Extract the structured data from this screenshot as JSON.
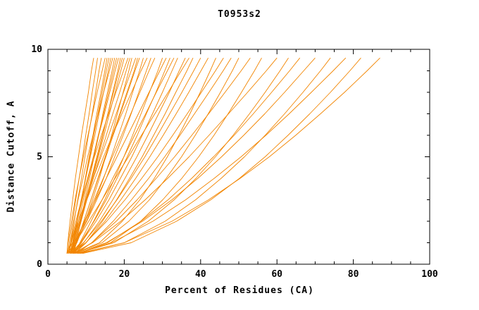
{
  "chart_data": {
    "type": "line",
    "title": "T0953s2",
    "xlabel": "Percent of Residues (CA)",
    "ylabel": "Distance Cutoff, A",
    "xlim": [
      0,
      100
    ],
    "ylim": [
      0,
      10
    ],
    "x_major_ticks": [
      0,
      20,
      40,
      60,
      80,
      100
    ],
    "x_minor_step": 5,
    "y_major_ticks": [
      0,
      5,
      10
    ],
    "y_minor_step": 1,
    "grid": false,
    "legend": "none",
    "line_color": "#f28500",
    "axis_color": "#000000",
    "background": "#ffffff",
    "y_levels": [
      0.5,
      1,
      2,
      3,
      4,
      5,
      6,
      7,
      8,
      9,
      9.6
    ],
    "curves": [
      [
        5,
        5.2,
        5.8,
        6.5,
        7.2,
        8.0,
        8.8,
        9.7,
        10.6,
        11.4,
        12
      ],
      [
        5.2,
        5.6,
        6.5,
        7.3,
        8.2,
        9.1,
        9.9,
        10.8,
        11.6,
        12.5,
        13
      ],
      [
        5.5,
        6.0,
        6.9,
        7.8,
        8.8,
        9.7,
        10.6,
        11.6,
        12.5,
        13.4,
        14
      ],
      [
        5,
        5.3,
        6.2,
        7.1,
        8.2,
        9.3,
        10.5,
        11.7,
        12.9,
        14.2,
        15
      ],
      [
        6.2,
        6.7,
        7.7,
        8.8,
        9.8,
        10.8,
        11.8,
        12.8,
        13.9,
        14.9,
        15.5
      ],
      [
        6,
        6.6,
        7.7,
        8.8,
        9.9,
        11.0,
        12.0,
        13.1,
        14.2,
        15.3,
        16
      ],
      [
        5.8,
        6.4,
        7.6,
        8.7,
        9.9,
        11.1,
        12.3,
        13.4,
        14.6,
        15.8,
        16.5
      ],
      [
        5.5,
        5.9,
        6.8,
        7.9,
        9.2,
        10.4,
        11.8,
        13.2,
        14.6,
        16.1,
        17
      ],
      [
        6.8,
        7.4,
        8.6,
        9.7,
        10.9,
        12.1,
        13.3,
        14.4,
        15.6,
        16.8,
        17.5
      ],
      [
        6,
        6.7,
        8.0,
        9.3,
        10.6,
        11.9,
        13.2,
        14.6,
        15.9,
        17.2,
        18
      ],
      [
        5.4,
        6.1,
        7.6,
        9.0,
        10.4,
        11.9,
        13.3,
        14.8,
        16.2,
        17.6,
        18.5
      ],
      [
        5,
        6.4,
        8.3,
        10.0,
        11.5,
        13.0,
        14.4,
        15.7,
        17.0,
        18.3,
        19
      ],
      [
        6.3,
        7.0,
        8.5,
        9.9,
        11.4,
        12.8,
        14.3,
        15.7,
        17.2,
        18.6,
        19.5
      ],
      [
        6.5,
        7.2,
        8.7,
        10.2,
        11.7,
        13.2,
        14.7,
        16.1,
        17.6,
        19.1,
        20
      ],
      [
        5.5,
        6.0,
        7.3,
        8.8,
        10.4,
        12.2,
        14.0,
        15.9,
        17.8,
        19.8,
        21
      ],
      [
        5.9,
        6.8,
        8.5,
        10.2,
        11.9,
        13.6,
        15.3,
        17.0,
        18.8,
        20.5,
        21.5
      ],
      [
        6,
        7.6,
        9.8,
        11.7,
        13.5,
        15.1,
        16.7,
        18.2,
        19.7,
        21.2,
        22
      ],
      [
        5,
        6.0,
        8.0,
        10.0,
        11.9,
        13.9,
        15.9,
        17.9,
        19.8,
        21.8,
        23
      ],
      [
        6.6,
        7.5,
        9.4,
        11.3,
        13.1,
        15.0,
        16.9,
        18.8,
        20.7,
        22.6,
        23.5
      ],
      [
        6.5,
        7.5,
        9.4,
        11.3,
        13.2,
        15.2,
        17.1,
        19.0,
        20.9,
        22.8,
        24
      ],
      [
        5.5,
        7.4,
        10.1,
        12.4,
        14.6,
        16.6,
        18.5,
        20.4,
        22.2,
        24.0,
        25
      ],
      [
        6,
        6.6,
        8.3,
        10.2,
        12.4,
        14.6,
        16.9,
        19.4,
        21.9,
        24.4,
        26
      ],
      [
        5,
        7.2,
        10.2,
        12.8,
        15.3,
        17.5,
        19.7,
        21.8,
        23.8,
        25.8,
        27
      ],
      [
        6,
        7.2,
        9.6,
        12.1,
        14.5,
        16.9,
        19.3,
        21.7,
        24.1,
        26.5,
        28
      ],
      [
        6.5,
        8.8,
        12.0,
        14.9,
        17.5,
        19.9,
        22.2,
        24.4,
        26.6,
        28.8,
        30
      ],
      [
        5.5,
        6.9,
        9.7,
        12.5,
        15.3,
        18.1,
        20.9,
        23.7,
        26.5,
        29.3,
        31
      ],
      [
        6,
        8.5,
        12.1,
        15.3,
        18.1,
        20.8,
        23.4,
        25.8,
        28.3,
        30.6,
        32
      ],
      [
        7,
        8.4,
        11.3,
        14.2,
        17.0,
        19.9,
        22.7,
        25.6,
        28.4,
        31.3,
        33
      ],
      [
        6,
        8.7,
        12.6,
        16.0,
        19.0,
        22.0,
        24.7,
        27.4,
        30.0,
        32.5,
        34
      ],
      [
        6.5,
        9.4,
        13.5,
        17.0,
        20.2,
        23.3,
        26.2,
        29.0,
        31.8,
        34.4,
        36
      ],
      [
        5.5,
        7.2,
        10.7,
        14.2,
        17.6,
        21.1,
        24.5,
        28.0,
        31.5,
        34.9,
        37
      ],
      [
        7,
        10.0,
        14.3,
        18.0,
        21.4,
        24.7,
        27.7,
        30.7,
        33.5,
        36.4,
        38
      ],
      [
        6,
        9.3,
        14.0,
        18.1,
        21.8,
        25.4,
        28.7,
        31.9,
        35.1,
        38.2,
        40
      ],
      [
        6.5,
        10.0,
        14.9,
        19.1,
        23.0,
        26.7,
        30.2,
        33.6,
        36.9,
        40.1,
        42
      ],
      [
        7,
        13.5,
        19.5,
        24.1,
        27.9,
        31.3,
        34.3,
        37.2,
        39.9,
        42.5,
        44
      ],
      [
        6,
        9.9,
        15.4,
        20.2,
        24.6,
        28.8,
        32.7,
        36.5,
        40.2,
        43.9,
        46
      ],
      [
        7.5,
        11.5,
        17.1,
        21.9,
        26.4,
        30.6,
        34.6,
        38.4,
        42.2,
        45.9,
        48
      ],
      [
        6.5,
        14.2,
        21.2,
        26.6,
        31.0,
        35.0,
        38.6,
        42.0,
        45.2,
        48.3,
        50
      ],
      [
        7,
        11.5,
        17.9,
        23.4,
        28.4,
        33.2,
        37.7,
        42.1,
        46.4,
        50.6,
        53
      ],
      [
        8,
        16.4,
        24.3,
        30.1,
        35.1,
        39.5,
        43.5,
        47.2,
        50.7,
        54.1,
        56
      ],
      [
        6.5,
        11.7,
        19.1,
        25.5,
        31.4,
        37.0,
        42.2,
        47.3,
        52.3,
        57.2,
        60
      ],
      [
        7.5,
        17.3,
        26.3,
        33.1,
        38.8,
        43.9,
        48.5,
        52.8,
        56.9,
        60.8,
        63
      ],
      [
        8,
        15.6,
        24.4,
        31.5,
        37.7,
        43.4,
        48.8,
        53.8,
        58.6,
        63.3,
        66
      ],
      [
        7,
        15.3,
        24.8,
        32.5,
        39.3,
        45.5,
        51.3,
        56.8,
        62.0,
        67.0,
        70
      ],
      [
        8.5,
        20.0,
        30.7,
        38.7,
        45.4,
        51.5,
        56.9,
        62.0,
        66.8,
        71.4,
        74
      ],
      [
        7.5,
        16.7,
        27.5,
        36.1,
        43.6,
        50.6,
        57.1,
        63.2,
        69.0,
        74.7,
        78
      ],
      [
        9,
        21.8,
        33.7,
        42.7,
        50.2,
        56.9,
        62.9,
        68.6,
        74.0,
        79.1,
        82
      ],
      [
        8,
        20.0,
        32.5,
        42.1,
        50.4,
        58.0,
        64.9,
        71.4,
        77.7,
        83.6,
        87
      ]
    ]
  }
}
